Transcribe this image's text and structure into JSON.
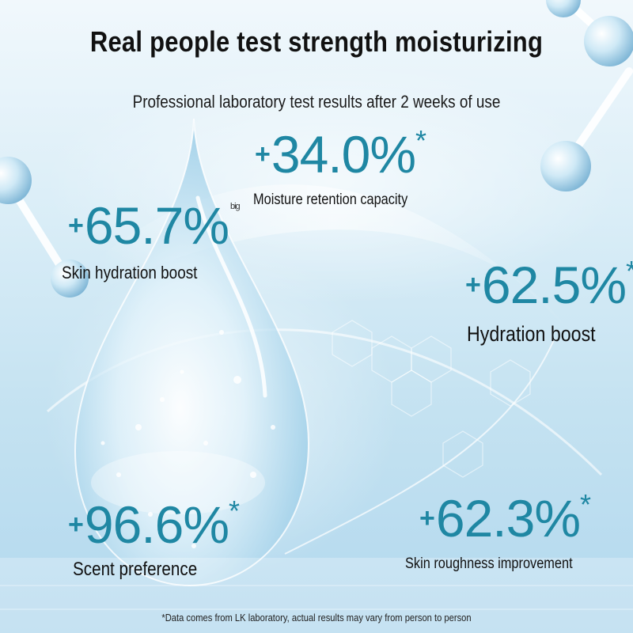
{
  "title": "Real people test strength moisturizing",
  "subtitle": "Professional laboratory test results after 2 weeks of use",
  "stats": [
    {
      "value": "34.0%",
      "plus": "+",
      "mark": "*",
      "label": "Moisture retention capacity"
    },
    {
      "value": "65.7%",
      "plus": "+",
      "mark": "big",
      "label": "Skin hydration boost"
    },
    {
      "value": "62.5%",
      "plus": "+",
      "mark": "*",
      "label": "Hydration boost"
    },
    {
      "value": "96.6%",
      "plus": "+",
      "mark": "*",
      "label": "Scent preference"
    },
    {
      "value": "62.3%",
      "plus": "+",
      "mark": "*",
      "label": "Skin roughness improvement"
    }
  ],
  "footnote": "*Data comes from LK laboratory, actual results may vary from person to person",
  "colors": {
    "accent": "#1f87a3",
    "text": "#111111",
    "background": "#cfe8f4"
  }
}
